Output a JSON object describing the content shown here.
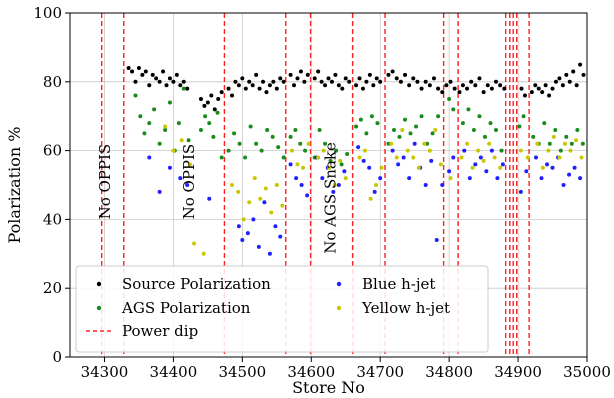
{
  "chart_data": {
    "type": "scatter",
    "xlabel": "Store No",
    "ylabel": "Polarization %",
    "xlim": [
      34250,
      35000
    ],
    "ylim": [
      0,
      100
    ],
    "xticks": [
      34300,
      34400,
      34500,
      34600,
      34700,
      34800,
      34900,
      35000
    ],
    "yticks": [
      0,
      20,
      40,
      60,
      80,
      100
    ],
    "grid": true,
    "legend_position": "lower-left",
    "legend_columns": 2,
    "colors": {
      "source": "#000000",
      "ags": "#1a8a1a",
      "blue": "#1f1fff",
      "yellow": "#c8c800",
      "power_dip": "#ff2020"
    },
    "power_dips": [
      34296,
      34328,
      34474,
      34563,
      34599,
      34660,
      34707,
      34792,
      34813,
      34882,
      34888,
      34893,
      34898,
      34916
    ],
    "annotations": [
      {
        "text": "No OPPIS",
        "x": 34308,
        "y": 40
      },
      {
        "text": "No OPPIS",
        "x": 34430,
        "y": 40
      },
      {
        "text": "No AGS Snake",
        "x": 34635,
        "y": 30
      }
    ],
    "legend": [
      {
        "key": "source",
        "label": "Source Polarization",
        "style": "dot"
      },
      {
        "key": "blue",
        "label": "Blue h-jet",
        "style": "dot"
      },
      {
        "key": "ags",
        "label": "AGS Polarization",
        "style": "dot"
      },
      {
        "key": "yellow",
        "label": "Yellow h-jet",
        "style": "dot"
      },
      {
        "key": "power_dip",
        "label": "Power dip",
        "style": "dash"
      }
    ],
    "series": [
      {
        "key": "source",
        "name": "Source Polarization",
        "x": [
          34335,
          34340,
          34345,
          34350,
          34355,
          34360,
          34365,
          34370,
          34375,
          34380,
          34385,
          34390,
          34395,
          34400,
          34405,
          34410,
          34415,
          34420,
          34440,
          34445,
          34450,
          34455,
          34460,
          34465,
          34470,
          34480,
          34485,
          34490,
          34495,
          34500,
          34505,
          34510,
          34515,
          34520,
          34525,
          34530,
          34535,
          34540,
          34545,
          34550,
          34555,
          34560,
          34570,
          34575,
          34580,
          34585,
          34590,
          34595,
          34605,
          34610,
          34615,
          34620,
          34625,
          34630,
          34635,
          34640,
          34645,
          34650,
          34655,
          34665,
          34670,
          34675,
          34680,
          34685,
          34690,
          34695,
          34700,
          34712,
          34718,
          34724,
          34730,
          34736,
          34742,
          34748,
          34754,
          34760,
          34766,
          34772,
          34778,
          34784,
          34790,
          34796,
          34802,
          34808,
          34815,
          34820,
          34826,
          34832,
          34838,
          34844,
          34850,
          34856,
          34862,
          34868,
          34874,
          34880,
          34905,
          34910,
          34920,
          34925,
          34930,
          34935,
          34940,
          34945,
          34950,
          34955,
          34960,
          34965,
          34970,
          34975,
          34980,
          34985,
          34990,
          34995
        ],
        "y": [
          84,
          83,
          80,
          84,
          82,
          83,
          79,
          82,
          81,
          80,
          83,
          79,
          81,
          80,
          82,
          79,
          80,
          78,
          75,
          73,
          74,
          76,
          72,
          75,
          77,
          78,
          76,
          80,
          79,
          81,
          78,
          80,
          79,
          82,
          78,
          80,
          77,
          79,
          80,
          78,
          81,
          80,
          82,
          79,
          81,
          83,
          80,
          82,
          81,
          83,
          80,
          79,
          81,
          80,
          82,
          79,
          78,
          81,
          80,
          79,
          81,
          78,
          80,
          82,
          79,
          81,
          80,
          82,
          83,
          81,
          80,
          82,
          79,
          81,
          80,
          78,
          80,
          79,
          81,
          78,
          77,
          79,
          80,
          78,
          77,
          79,
          78,
          80,
          79,
          81,
          77,
          79,
          78,
          80,
          79,
          78,
          78,
          76,
          77,
          79,
          78,
          77,
          79,
          76,
          78,
          80,
          81,
          79,
          82,
          80,
          83,
          79,
          85,
          82
        ]
      },
      {
        "key": "ags",
        "name": "AGS Polarization",
        "x": [
          34345,
          34352,
          34358,
          34365,
          34372,
          34380,
          34388,
          34395,
          34402,
          34408,
          34415,
          34422,
          34440,
          34446,
          34452,
          34458,
          34464,
          34470,
          34480,
          34488,
          34496,
          34504,
          34512,
          34520,
          34528,
          34536,
          34544,
          34552,
          34560,
          34570,
          34577,
          34584,
          34591,
          34605,
          34612,
          34620,
          34628,
          34636,
          34644,
          34652,
          34665,
          34672,
          34680,
          34688,
          34696,
          34712,
          34720,
          34728,
          34736,
          34744,
          34752,
          34760,
          34768,
          34776,
          34784,
          34800,
          34806,
          34820,
          34828,
          34836,
          34844,
          34852,
          34860,
          34868,
          34876,
          34902,
          34908,
          34922,
          34930,
          34938,
          34946,
          34954,
          34962,
          34970,
          34978,
          34986,
          34994
        ],
        "y": [
          76,
          70,
          65,
          68,
          72,
          62,
          66,
          74,
          60,
          68,
          78,
          63,
          66,
          70,
          68,
          64,
          71,
          58,
          60,
          65,
          62,
          58,
          67,
          62,
          60,
          66,
          64,
          61,
          58,
          64,
          66,
          62,
          60,
          58,
          66,
          62,
          57,
          60,
          56,
          59,
          67,
          69,
          65,
          70,
          68,
          62,
          66,
          64,
          69,
          65,
          67,
          70,
          62,
          65,
          70,
          75,
          72,
          68,
          72,
          66,
          70,
          64,
          68,
          66,
          60,
          67,
          70,
          64,
          62,
          68,
          62,
          66,
          60,
          64,
          62,
          66,
          62
        ]
      },
      {
        "key": "blue",
        "name": "Blue h-jet",
        "x": [
          34365,
          34380,
          34395,
          34410,
          34420,
          34452,
          34495,
          34500,
          34508,
          34516,
          34524,
          34532,
          34540,
          34548,
          34555,
          34570,
          34578,
          34586,
          34594,
          34608,
          34616,
          34624,
          34632,
          34640,
          34648,
          34668,
          34676,
          34684,
          34692,
          34700,
          34718,
          34726,
          34734,
          34742,
          34750,
          34758,
          34766,
          34774,
          34782,
          34790,
          34800,
          34806,
          34822,
          34830,
          34838,
          34846,
          34854,
          34862,
          34870,
          34878,
          34904,
          34912,
          34926,
          34934,
          34942,
          34950,
          34958,
          34966,
          34974,
          34982,
          34990
        ],
        "y": [
          58,
          48,
          55,
          52,
          50,
          46,
          38,
          34,
          36,
          40,
          32,
          45,
          30,
          38,
          35,
          56,
          52,
          50,
          47,
          58,
          52,
          55,
          48,
          50,
          54,
          61,
          57,
          55,
          48,
          52,
          60,
          56,
          58,
          52,
          62,
          55,
          50,
          57,
          34,
          50,
          54,
          58,
          60,
          52,
          56,
          58,
          54,
          60,
          52,
          56,
          48,
          54,
          58,
          52,
          56,
          55,
          58,
          50,
          53,
          55,
          52
        ]
      },
      {
        "key": "yellow",
        "name": "Yellow h-jet",
        "x": [
          34388,
          34400,
          34412,
          34424,
          34430,
          34444,
          34485,
          34494,
          34502,
          34510,
          34518,
          34526,
          34534,
          34542,
          34550,
          34558,
          34572,
          34580,
          34588,
          34596,
          34610,
          34618,
          34626,
          34634,
          34642,
          34650,
          34670,
          34678,
          34686,
          34694,
          34702,
          34716,
          34724,
          34732,
          34740,
          34748,
          34756,
          34764,
          34772,
          34780,
          34788,
          34802,
          34818,
          34826,
          34834,
          34842,
          34850,
          34858,
          34866,
          34874,
          34904,
          34914,
          34928,
          34936,
          34944,
          34952,
          34960,
          34968,
          34976,
          34984,
          34992
        ],
        "y": [
          67,
          60,
          63,
          56,
          33,
          30,
          50,
          48,
          40,
          45,
          52,
          46,
          49,
          42,
          50,
          44,
          60,
          56,
          55,
          62,
          58,
          60,
          55,
          50,
          57,
          52,
          58,
          60,
          46,
          50,
          55,
          62,
          58,
          66,
          60,
          58,
          55,
          62,
          60,
          66,
          56,
          52,
          58,
          62,
          55,
          60,
          57,
          62,
          58,
          55,
          60,
          58,
          62,
          55,
          60,
          64,
          58,
          62,
          60,
          63,
          58
        ]
      }
    ]
  }
}
